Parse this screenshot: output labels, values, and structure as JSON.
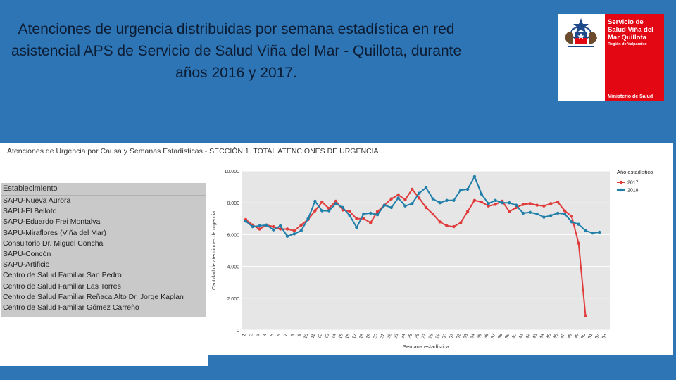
{
  "slide": {
    "title": "Atenciones de urgencia distribuidas por semana estadística en red asistencial APS de Servicio de Salud Viña del Mar - Quillota, durante años 2016 y 2017."
  },
  "logo": {
    "line1": "Servicio de Salud Viña del Mar Quillota",
    "line2": "Región de Valparaíso",
    "line3": "Ministerio de Salud"
  },
  "dashboard": {
    "title": "Atenciones de Urgencia por Causa y Semanas Estadísticas - SECCIÓN 1. TOTAL ATENCIONES DE URGENCIA",
    "filter_header": "Establecimiento",
    "establishments": [
      "SAPU-Nueva Aurora",
      "SAPU-El Belloto",
      "SAPU-Eduardo Frei Montalva",
      "SAPU-Miraflores (Viña del Mar)",
      "Consultorio Dr. Miguel Concha",
      "SAPU-Concón",
      "SAPU-Artificio",
      "Centro de Salud Familiar San Pedro",
      "Centro de Salud Familiar Las Torres",
      "Centro de Salud Familiar Reñaca Alto Dr. Jorge Kaplan",
      "Centro de Salud Familiar Gómez Carreño"
    ]
  },
  "chart_data": {
    "type": "line",
    "title": "",
    "xlabel": "Semana estadística",
    "ylabel": "Cantidad de atenciones de urgencia",
    "ylim": [
      0,
      10000
    ],
    "yticks": [
      0,
      2000,
      4000,
      6000,
      8000,
      10000
    ],
    "ytick_labels": [
      "0",
      "2.000",
      "4.000",
      "6.000",
      "8.000",
      "10.000"
    ],
    "x": [
      "1",
      "2",
      "3",
      "4",
      "5",
      "6",
      "7",
      "8",
      "9",
      "10",
      "11",
      "12",
      "13",
      "14",
      "15",
      "16",
      "17",
      "18",
      "19",
      "20",
      "21",
      "22",
      "23",
      "24",
      "25",
      "26",
      "27",
      "28",
      "29",
      "30",
      "31",
      "32",
      "33",
      "34",
      "35",
      "36",
      "37",
      "38",
      "39",
      "40",
      "41",
      "42",
      "43",
      "44",
      "45",
      "46",
      "47",
      "48",
      "49",
      "50",
      "51",
      "52",
      "53"
    ],
    "legend_title": "Año estadístico",
    "legend_position": "top-right",
    "grid": true,
    "series": [
      {
        "name": "2017",
        "color": "#e03c3c",
        "values": [
          6950,
          6600,
          6350,
          6600,
          6500,
          6350,
          6350,
          6250,
          6600,
          6950,
          7500,
          8050,
          7650,
          8100,
          7550,
          7450,
          7000,
          7000,
          6750,
          7450,
          7850,
          8250,
          8500,
          8200,
          8850,
          8300,
          7700,
          7300,
          6800,
          6550,
          6500,
          6750,
          7450,
          8150,
          8050,
          7800,
          7900,
          8100,
          7450,
          7700,
          7900,
          7950,
          7850,
          7800,
          7950,
          8050,
          7500,
          7150,
          5450,
          900,
          null,
          null,
          null
        ]
      },
      {
        "name": "2018",
        "color": "#1f7fa8",
        "values": [
          6850,
          6500,
          6550,
          6600,
          6300,
          6550,
          5900,
          6050,
          6250,
          7000,
          8100,
          7500,
          7500,
          7950,
          7700,
          7200,
          6450,
          7300,
          7350,
          7250,
          7850,
          7700,
          8300,
          7800,
          7950,
          8600,
          8950,
          8250,
          8000,
          8150,
          8150,
          8800,
          8850,
          9650,
          8550,
          7950,
          8150,
          8000,
          8000,
          7850,
          7350,
          7400,
          7300,
          7100,
          7200,
          7350,
          7300,
          6800,
          6650,
          6250,
          6100,
          6150,
          null
        ]
      }
    ]
  }
}
